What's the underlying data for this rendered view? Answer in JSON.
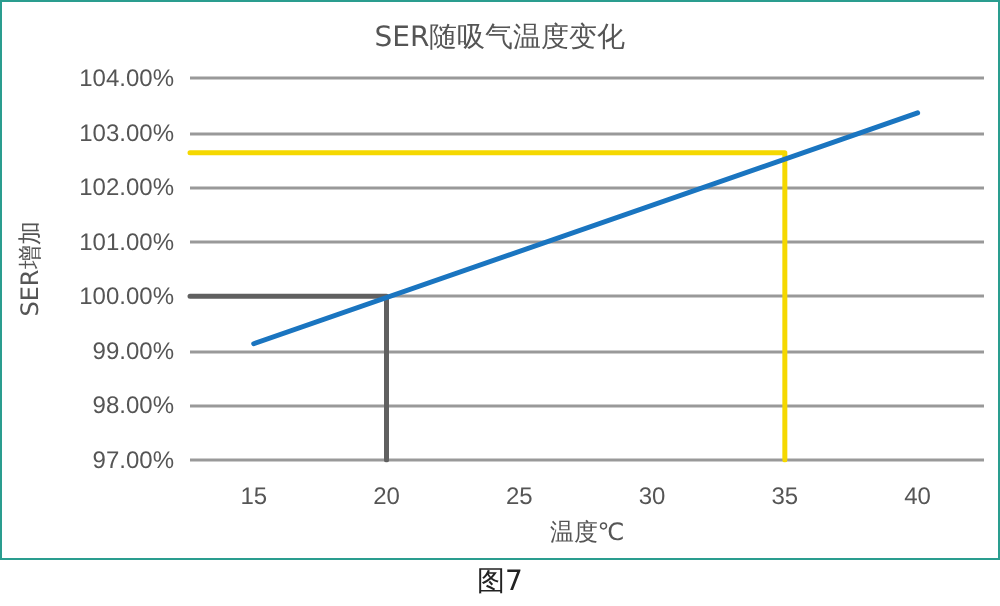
{
  "chart_data": {
    "type": "line",
    "title": "SER随吸气温度变化",
    "xlabel": "温度℃",
    "ylabel": "SER增加",
    "annotations": [
      "图7"
    ],
    "xlim": [
      12.6,
      42.5
    ],
    "xticks": [
      15,
      20,
      25,
      30,
      35,
      40
    ],
    "ylim": [
      97,
      104
    ],
    "yticks": [
      {
        "value": 97,
        "label": "97.00%"
      },
      {
        "value": 98,
        "label": "98.00%"
      },
      {
        "value": 99,
        "label": "99.00%"
      },
      {
        "value": 100,
        "label": "100.00%"
      },
      {
        "value": 101,
        "label": "101.00%"
      },
      {
        "value": 102,
        "label": "102.00%"
      },
      {
        "value": 103,
        "label": "103.00%"
      },
      {
        "value": 104,
        "label": "104.00%"
      }
    ],
    "grid": "y",
    "marker": "none",
    "line_style": "solid",
    "series": [
      {
        "color": "#1a75c0",
        "x": [
          15,
          40
        ],
        "values": [
          99.13,
          103.36
        ]
      },
      {
        "color": "#606060",
        "x": [
          12.6,
          20,
          20
        ],
        "values": [
          100,
          100,
          97
        ]
      },
      {
        "color": "#f5d800",
        "x": [
          12.6,
          35,
          35
        ],
        "values": [
          102.63,
          102.63,
          97
        ]
      }
    ]
  }
}
